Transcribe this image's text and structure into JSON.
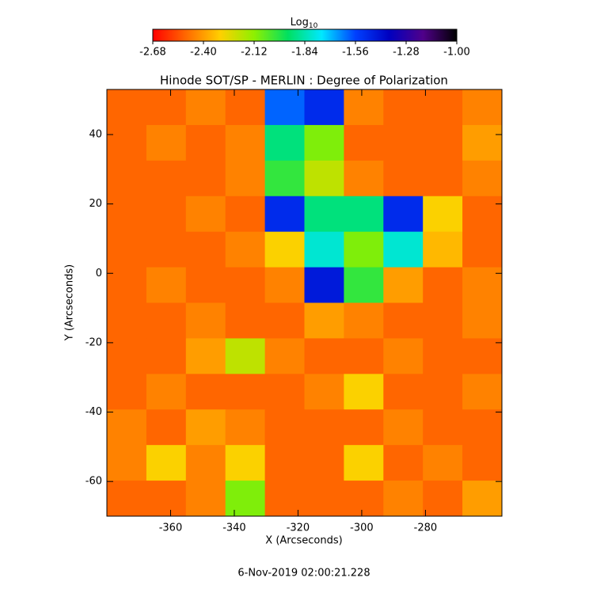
{
  "chart_data": {
    "type": "heatmap",
    "title": "Hinode SOT/SP - MERLIN : Degree of Polarization",
    "xlabel": "X (Arcseconds)",
    "ylabel": "Y (Arcseconds)",
    "footer": "6-Nov-2019 02:00:21.228",
    "colorbar_title": "Log",
    "colorbar_title_subscript": "10",
    "colormap": [
      "#ff0000",
      "#ff6a00",
      "#ffd000",
      "#8ef000",
      "#00e060",
      "#00e8ff",
      "#0040ff",
      "#0000c0",
      "#50008a",
      "#000000"
    ],
    "clim": [
      -2.68,
      -1.0
    ],
    "cticks": [
      -2.68,
      {
        "value": -2.4,
        "label": "-2.40"
      },
      -2.12,
      -1.84,
      -1.56,
      -1.28,
      {
        "value": -1.0,
        "label": "-1.00"
      }
    ],
    "xlim": [
      -380,
      -256
    ],
    "ylim": [
      -70,
      53
    ],
    "xticks": [
      -360,
      -340,
      -320,
      -300,
      -280
    ],
    "yticks": [
      -60,
      -40,
      -20,
      0,
      20,
      40
    ],
    "z": [
      [
        -2.5,
        -2.5,
        -2.45,
        -2.5,
        -1.6,
        -1.5,
        -2.45,
        -2.5,
        -2.5,
        -2.45
      ],
      [
        -2.5,
        -2.45,
        -2.5,
        -2.45,
        -1.9,
        -2.1,
        -2.5,
        -2.5,
        -2.5,
        -2.4
      ],
      [
        -2.5,
        -2.5,
        -2.5,
        -2.45,
        -2.0,
        -2.2,
        -2.45,
        -2.5,
        -2.5,
        -2.45
      ],
      [
        -2.5,
        -2.5,
        -2.45,
        -2.5,
        -1.5,
        -1.9,
        -1.9,
        -1.5,
        -2.3,
        -2.5
      ],
      [
        -2.5,
        -2.5,
        -2.5,
        -2.45,
        -2.3,
        -1.8,
        -2.1,
        -1.8,
        -2.35,
        -2.5
      ],
      [
        -2.5,
        -2.45,
        -2.5,
        -2.5,
        -2.45,
        -1.45,
        -2.0,
        -2.4,
        -2.5,
        -2.45
      ],
      [
        -2.5,
        -2.5,
        -2.45,
        -2.5,
        -2.5,
        -2.4,
        -2.45,
        -2.5,
        -2.5,
        -2.45
      ],
      [
        -2.5,
        -2.5,
        -2.4,
        -2.2,
        -2.45,
        -2.5,
        -2.5,
        -2.45,
        -2.5,
        -2.5
      ],
      [
        -2.5,
        -2.45,
        -2.5,
        -2.5,
        -2.5,
        -2.45,
        -2.3,
        -2.5,
        -2.5,
        -2.45
      ],
      [
        -2.45,
        -2.5,
        -2.4,
        -2.45,
        -2.5,
        -2.5,
        -2.5,
        -2.45,
        -2.5,
        -2.5
      ],
      [
        -2.45,
        -2.3,
        -2.45,
        -2.3,
        -2.5,
        -2.5,
        -2.3,
        -2.5,
        -2.45,
        -2.5
      ],
      [
        -2.5,
        -2.5,
        -2.45,
        -2.1,
        -2.5,
        -2.5,
        -2.5,
        -2.45,
        -2.5,
        -2.4
      ]
    ]
  }
}
